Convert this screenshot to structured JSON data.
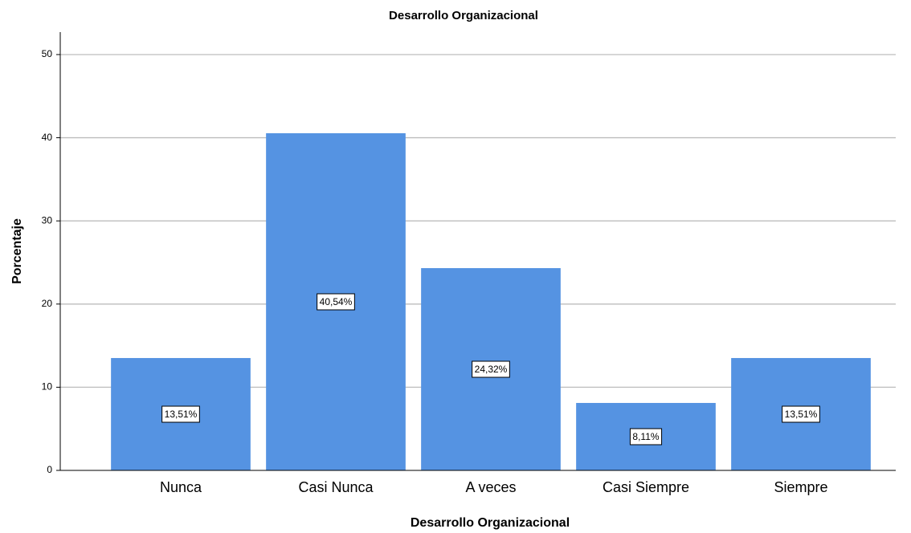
{
  "chart_data": {
    "type": "bar",
    "title": "Desarrollo Organizacional",
    "x_label": "Desarrollo Organizacional",
    "y_label": "Porcentaje",
    "categories": [
      "Nunca",
      "Casi Nunca",
      "A veces",
      "Casi Siempre",
      "Siempre"
    ],
    "values": [
      13.51,
      40.54,
      24.32,
      8.11,
      13.51
    ],
    "value_labels": [
      "13,51%",
      "40,54%",
      "24,32%",
      "8,11%",
      "13,51%"
    ],
    "color": "#5593e2",
    "ylim": [
      0,
      52.7
    ],
    "yticks": [
      0,
      10,
      20,
      30,
      40,
      50
    ],
    "grid": true
  }
}
